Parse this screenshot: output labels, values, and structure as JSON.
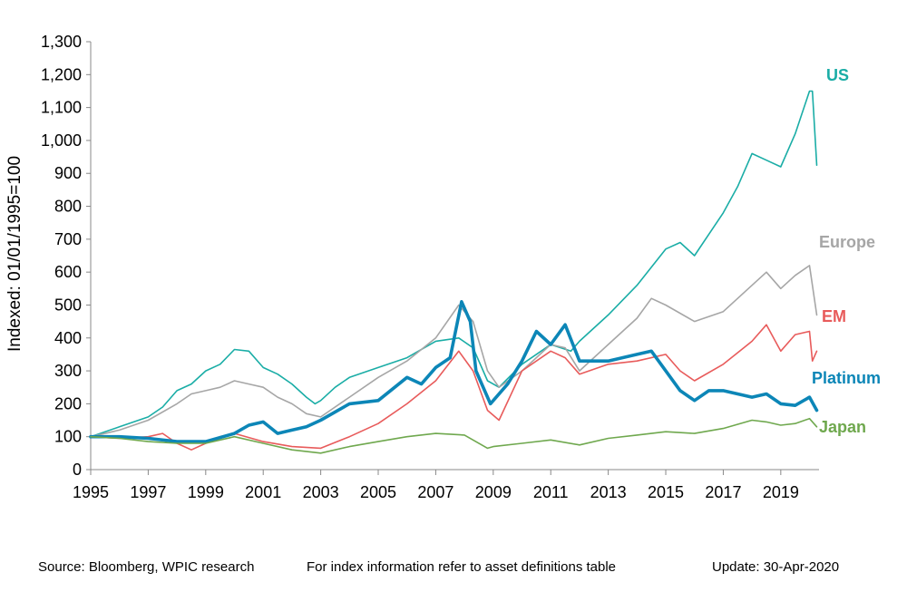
{
  "chart_data": {
    "type": "line",
    "ylabel": "Indexed: 01/01/1995=100",
    "ylim": [
      0,
      1300
    ],
    "yticks": [
      0,
      100,
      200,
      300,
      400,
      500,
      600,
      700,
      800,
      900,
      1000,
      1100,
      1200,
      1300
    ],
    "ytick_labels": [
      "0",
      "100",
      "200",
      "300",
      "400",
      "500",
      "600",
      "700",
      "800",
      "900",
      "1,000",
      "1,100",
      "1,200",
      "1,300"
    ],
    "xlim": [
      1995,
      2020.33
    ],
    "xticks": [
      1995,
      1997,
      1999,
      2001,
      2003,
      2005,
      2007,
      2009,
      2011,
      2013,
      2015,
      2017,
      2019
    ],
    "xtick_labels": [
      "1995",
      "1997",
      "1999",
      "2001",
      "2003",
      "2005",
      "2007",
      "2009",
      "2011",
      "2013",
      "2015",
      "2017",
      "2019"
    ],
    "grid": false,
    "series": [
      {
        "name": "US",
        "color": "#1aada6",
        "width": 1.6,
        "x": [
          1995,
          1996,
          1997,
          1997.5,
          1998,
          1998.5,
          1999,
          1999.5,
          2000,
          2000.5,
          2001,
          2001.5,
          2002,
          2002.5,
          2002.8,
          2003,
          2003.5,
          2004,
          2005,
          2006,
          2007,
          2007.8,
          2008.3,
          2008.8,
          2009.2,
          2010,
          2011,
          2011.7,
          2012,
          2013,
          2014,
          2015,
          2015.5,
          2016,
          2017,
          2017.5,
          2018,
          2018.5,
          2019,
          2019.5,
          2020,
          2020.1,
          2020.25
        ],
        "y": [
          100,
          130,
          160,
          190,
          240,
          260,
          300,
          320,
          365,
          360,
          310,
          290,
          260,
          220,
          200,
          210,
          250,
          280,
          310,
          340,
          390,
          400,
          370,
          270,
          250,
          320,
          380,
          360,
          390,
          470,
          560,
          670,
          690,
          650,
          780,
          860,
          960,
          940,
          920,
          1020,
          1150,
          1150,
          925
        ]
      },
      {
        "name": "Europe",
        "color": "#a6a6a6",
        "width": 1.6,
        "x": [
          1995,
          1996,
          1997,
          1998,
          1998.5,
          1999,
          1999.5,
          2000,
          2000.5,
          2001,
          2001.5,
          2002,
          2002.5,
          2003,
          2004,
          2005,
          2006,
          2007,
          2007.8,
          2008.3,
          2008.8,
          2009.2,
          2010,
          2011,
          2011.5,
          2012,
          2013,
          2014,
          2014.5,
          2015,
          2016,
          2017,
          2018,
          2018.5,
          2019,
          2019.5,
          2020,
          2020.25
        ],
        "y": [
          100,
          120,
          150,
          200,
          230,
          240,
          250,
          270,
          260,
          250,
          220,
          200,
          170,
          160,
          220,
          280,
          330,
          400,
          500,
          450,
          300,
          250,
          300,
          380,
          370,
          300,
          380,
          460,
          520,
          500,
          450,
          480,
          560,
          600,
          550,
          590,
          620,
          470
        ]
      },
      {
        "name": "EM",
        "color": "#e85b5b",
        "width": 1.6,
        "x": [
          1995,
          1996,
          1997,
          1997.5,
          1998,
          1998.5,
          1999,
          1999.5,
          2000,
          2001,
          2002,
          2003,
          2004,
          2005,
          2006,
          2007,
          2007.8,
          2008.3,
          2008.8,
          2009.2,
          2010,
          2011,
          2011.5,
          2012,
          2013,
          2014,
          2015,
          2015.5,
          2016,
          2017,
          2018,
          2018.5,
          2019,
          2019.5,
          2020,
          2020.1,
          2020.25
        ],
        "y": [
          100,
          95,
          100,
          110,
          80,
          60,
          80,
          100,
          110,
          85,
          70,
          65,
          100,
          140,
          200,
          270,
          360,
          300,
          180,
          150,
          300,
          360,
          340,
          290,
          320,
          330,
          350,
          300,
          270,
          320,
          390,
          440,
          360,
          410,
          420,
          330,
          360
        ]
      },
      {
        "name": "Platinum",
        "color": "#0c86b7",
        "width": 3.6,
        "x": [
          1995,
          1996,
          1997,
          1998,
          1999,
          2000,
          2000.5,
          2001,
          2001.5,
          2002,
          2002.5,
          2003,
          2004,
          2005,
          2006,
          2006.5,
          2007,
          2007.5,
          2007.9,
          2008.2,
          2008.4,
          2008.9,
          2009.5,
          2010,
          2010.5,
          2011,
          2011.5,
          2012,
          2013,
          2014,
          2014.5,
          2015,
          2015.5,
          2016,
          2016.5,
          2017,
          2018,
          2018.5,
          2019,
          2019.5,
          2020,
          2020.25
        ],
        "y": [
          100,
          100,
          95,
          85,
          85,
          110,
          135,
          145,
          110,
          120,
          130,
          150,
          200,
          210,
          280,
          260,
          310,
          340,
          510,
          450,
          300,
          200,
          260,
          330,
          420,
          380,
          440,
          330,
          330,
          350,
          360,
          300,
          240,
          210,
          240,
          240,
          220,
          230,
          200,
          195,
          220,
          180
        ]
      },
      {
        "name": "Japan",
        "color": "#6fa84e",
        "width": 1.6,
        "x": [
          1995,
          1996,
          1997,
          1998,
          1999,
          2000,
          2001,
          2002,
          2003,
          2004,
          2005,
          2006,
          2007,
          2008,
          2008.8,
          2009,
          2010,
          2011,
          2012,
          2013,
          2014,
          2015,
          2016,
          2017,
          2018,
          2018.5,
          2019,
          2019.5,
          2020,
          2020.25
        ],
        "y": [
          100,
          95,
          85,
          80,
          80,
          100,
          80,
          60,
          50,
          70,
          85,
          100,
          110,
          105,
          65,
          70,
          80,
          90,
          75,
          95,
          105,
          115,
          110,
          125,
          150,
          145,
          135,
          140,
          155,
          130
        ]
      }
    ]
  },
  "footer": {
    "source": "Source: Bloomberg, WPIC research",
    "note": "For index information refer to asset definitions table",
    "update": "Update: 30-Apr-2020"
  }
}
